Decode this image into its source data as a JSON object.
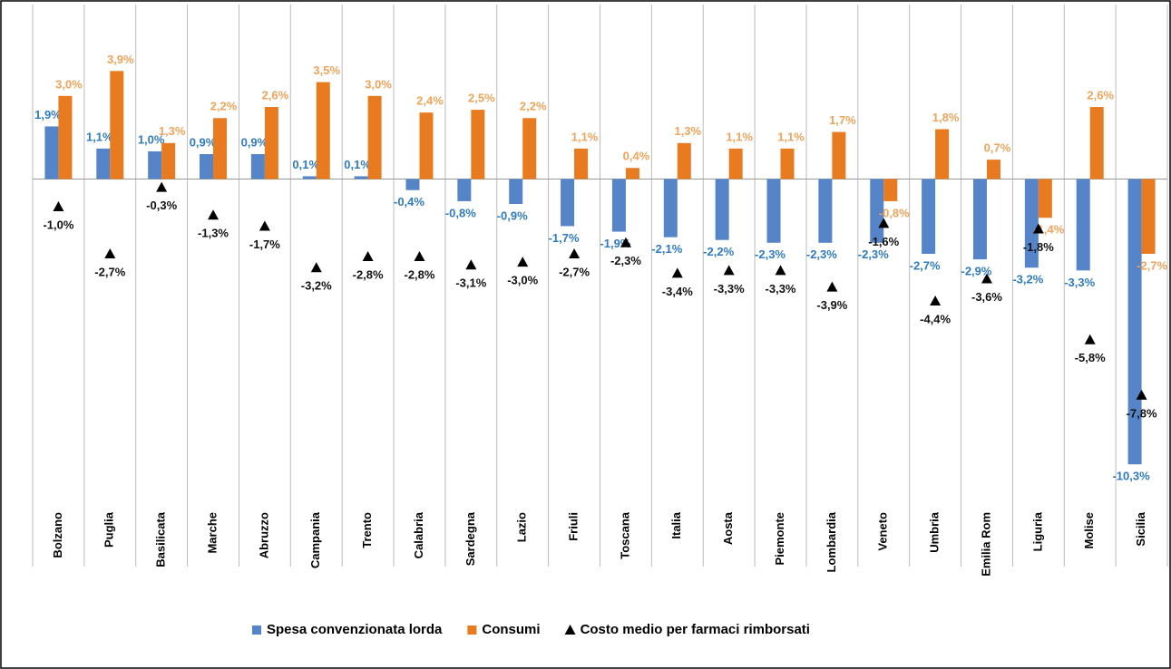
{
  "chart_data": {
    "type": "bar",
    "categories": [
      "Bolzano",
      "Puglia",
      "Basilicata",
      "Marche",
      "Abruzzo",
      "Campania",
      "Trento",
      "Calabria",
      "Sardegna",
      "Lazio",
      "Friuli",
      "Toscana",
      "Italia",
      "Aosta",
      "Piemonte",
      "Lombardia",
      "Veneto",
      "Umbria",
      "Emilia Rom",
      "Liguria",
      "Molise",
      "Sicilia"
    ],
    "series": [
      {
        "name": "Spesa convenzionata lorda",
        "color": "#5585c8",
        "label_color": "#2e7bc4",
        "mark": "bar",
        "values": [
          1.9,
          1.1,
          1.0,
          0.9,
          0.9,
          0.1,
          0.1,
          -0.4,
          -0.8,
          -0.9,
          -1.7,
          -1.9,
          -2.1,
          -2.2,
          -2.3,
          -2.3,
          -2.3,
          -2.7,
          -2.9,
          -3.2,
          -3.3,
          -10.3
        ],
        "value_labels": [
          "1,9%",
          "1,1%",
          "1,0%",
          "0,9%",
          "0,9%",
          "0,1%",
          "0,1%",
          "-0,4%",
          "-0,8%",
          "-0,9%",
          "-1,7%",
          "-1,9%",
          "-2,1%",
          "-2,2%",
          "-2,3%",
          "-2,3%",
          "-2,3%",
          "-2,7%",
          "-2,9%",
          "-3,2%",
          "-3,3%",
          "-10,3%"
        ]
      },
      {
        "name": "Consumi",
        "color": "#e87a1f",
        "label_color": "#f2a35a",
        "mark": "bar",
        "values": [
          3.0,
          3.9,
          1.3,
          2.2,
          2.6,
          3.5,
          3.0,
          2.4,
          2.5,
          2.2,
          1.1,
          0.4,
          1.3,
          1.1,
          1.1,
          1.7,
          -0.8,
          1.8,
          0.7,
          -1.4,
          2.6,
          -2.7
        ],
        "value_labels": [
          "3,0%",
          "3,9%",
          "1,3%",
          "2,2%",
          "2,6%",
          "3,5%",
          "3,0%",
          "2,4%",
          "2,5%",
          "2,2%",
          "1,1%",
          "0,4%",
          "1,3%",
          "1,1%",
          "1,1%",
          "1,7%",
          "-0,8%",
          "1,8%",
          "0,7%",
          "-1,4%",
          "2,6%",
          "-2,7%"
        ]
      },
      {
        "name": "Costo medio per farmaci rimborsati",
        "color": "#000000",
        "label_color": "#111111",
        "mark": "triangle",
        "values": [
          -1.0,
          -2.7,
          -0.3,
          -1.3,
          -1.7,
          -3.2,
          -2.8,
          -2.8,
          -3.1,
          -3.0,
          -2.7,
          -2.3,
          -3.4,
          -3.3,
          -3.3,
          -3.9,
          -1.6,
          -4.4,
          -3.6,
          -1.8,
          -5.8,
          -7.8
        ],
        "value_labels": [
          "-1,0%",
          "-2,7%",
          "-0,3%",
          "-1,3%",
          "-1,7%",
          "-3,2%",
          "-2,8%",
          "-2,8%",
          "-3,1%",
          "-3,0%",
          "-2,7%",
          "-2,3%",
          "-3,4%",
          "-3,3%",
          "-3,3%",
          "-3,9%",
          "-1,6%",
          "-4,4%",
          "-3,6%",
          "-1,8%",
          "-5,8%",
          "-7,8%"
        ]
      }
    ],
    "ylim": [
      -11.7,
      6.3
    ],
    "legend": "bottom"
  }
}
